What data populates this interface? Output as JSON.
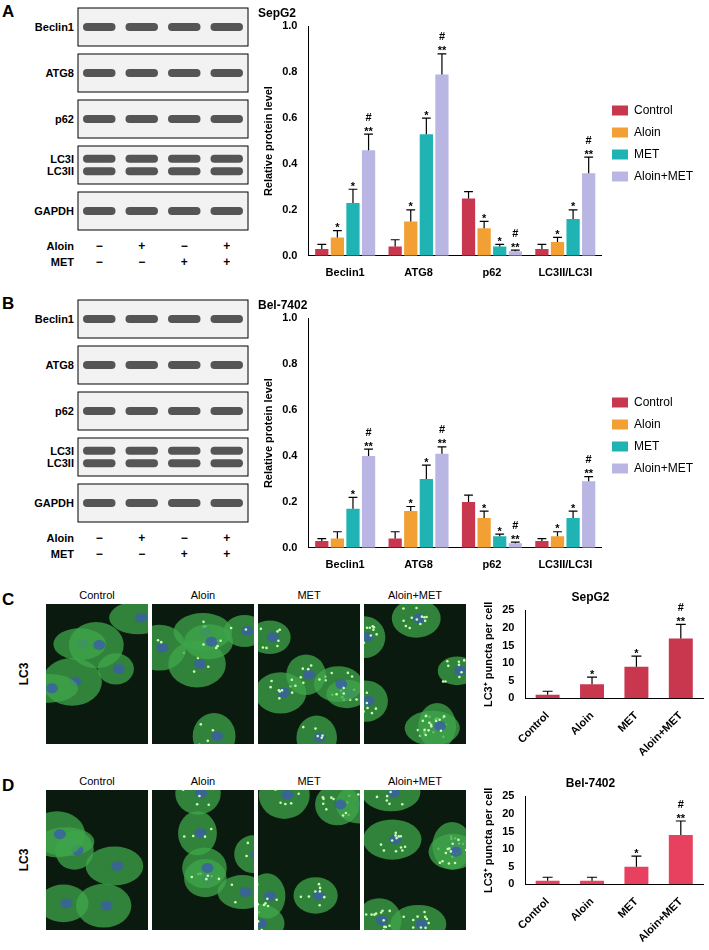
{
  "chart_data": [
    {
      "panel": "A",
      "type": "bar",
      "title": "SepG2",
      "y_label": "Relative protein level",
      "categories": [
        "Beclin1",
        "ATG8",
        "p62",
        "LC3II/LC3I"
      ],
      "series": [
        {
          "name": "Control",
          "color": "#c9374f",
          "values": [
            0.03,
            0.04,
            0.25,
            0.03
          ],
          "errors": [
            0.02,
            0.03,
            0.03,
            0.02
          ],
          "annotations": [
            null,
            null,
            null,
            null
          ]
        },
        {
          "name": "Aloin",
          "color": "#f2a034",
          "values": [
            0.08,
            0.15,
            0.12,
            0.06
          ],
          "errors": [
            0.03,
            0.05,
            0.03,
            0.02
          ],
          "annotations": [
            [
              "*"
            ],
            [
              "*"
            ],
            [
              "*"
            ],
            [
              "*"
            ]
          ]
        },
        {
          "name": "MET",
          "color": "#1fb3b3",
          "values": [
            0.23,
            0.53,
            0.04,
            0.16
          ],
          "errors": [
            0.06,
            0.07,
            0.01,
            0.04
          ],
          "annotations": [
            [
              "*"
            ],
            [
              "*"
            ],
            [
              "*"
            ],
            [
              "*"
            ]
          ]
        },
        {
          "name": "Aloin+MET",
          "color": "#b9b6e3",
          "values": [
            0.46,
            0.79,
            0.02,
            0.36
          ],
          "errors": [
            0.07,
            0.09,
            0.005,
            0.07
          ],
          "annotations": [
            [
              "#",
              "**"
            ],
            [
              "#",
              "**"
            ],
            [
              "#",
              "**"
            ],
            [
              "#",
              "**"
            ]
          ]
        }
      ],
      "ylim": [
        0,
        1
      ],
      "yticks": [
        {
          "value": 0,
          "label": "0.0"
        },
        {
          "value": 0.2,
          "label": "0.2"
        },
        {
          "value": 0.4,
          "label": "0.4"
        },
        {
          "value": 0.6,
          "label": "0.6"
        },
        {
          "value": 0.8,
          "label": "0.8"
        },
        {
          "value": 1,
          "label": "1.0"
        }
      ],
      "grid": false,
      "legend": "right"
    },
    {
      "panel": "B",
      "type": "bar",
      "title": "Bel-7402",
      "y_label": "Relative protein level",
      "categories": [
        "Beclin1",
        "ATG8",
        "p62",
        "LC3II/LC3I"
      ],
      "series": [
        {
          "name": "Control",
          "color": "#c9374f",
          "values": [
            0.03,
            0.04,
            0.2,
            0.03
          ],
          "errors": [
            0.01,
            0.03,
            0.03,
            0.01
          ],
          "annotations": [
            null,
            null,
            null,
            null
          ]
        },
        {
          "name": "Aloin",
          "color": "#f2a034",
          "values": [
            0.04,
            0.16,
            0.13,
            0.05
          ],
          "errors": [
            0.03,
            0.02,
            0.03,
            0.02
          ],
          "annotations": [
            null,
            [
              "*"
            ],
            [
              "*"
            ],
            [
              "*"
            ]
          ]
        },
        {
          "name": "MET",
          "color": "#1fb3b3",
          "values": [
            0.17,
            0.3,
            0.05,
            0.13
          ],
          "errors": [
            0.05,
            0.06,
            0.01,
            0.03
          ],
          "annotations": [
            [
              "*"
            ],
            [
              "*"
            ],
            [
              "*"
            ],
            [
              "*"
            ]
          ]
        },
        {
          "name": "Aloin+MET",
          "color": "#b9b6e3",
          "values": [
            0.4,
            0.41,
            0.02,
            0.29
          ],
          "errors": [
            0.03,
            0.03,
            0.005,
            0.02
          ],
          "annotations": [
            [
              "#",
              "**"
            ],
            [
              "#",
              "**"
            ],
            [
              "#",
              "**"
            ],
            [
              "#",
              "**"
            ]
          ]
        }
      ],
      "ylim": [
        0,
        1
      ],
      "yticks": [
        {
          "value": 0,
          "label": "0.0"
        },
        {
          "value": 0.2,
          "label": "0.2"
        },
        {
          "value": 0.4,
          "label": "0.4"
        },
        {
          "value": 0.6,
          "label": "0.6"
        },
        {
          "value": 0.8,
          "label": "0.8"
        },
        {
          "value": 1,
          "label": "1.0"
        }
      ],
      "grid": false,
      "legend": "right"
    },
    {
      "panel": "C",
      "type": "bar",
      "title": "SepG2",
      "y_label": "LC3⁺ puncta per cell",
      "categories": [
        "Control",
        "Aloin",
        "MET",
        "Aloin+MET"
      ],
      "values": [
        1,
        4,
        9,
        17
      ],
      "errors": [
        1,
        2,
        3,
        4
      ],
      "annotations": [
        null,
        [
          "*"
        ],
        [
          "*"
        ],
        [
          "#",
          "**"
        ]
      ],
      "color": "#c9374f",
      "ylim": [
        0,
        25
      ],
      "yticks": [
        0,
        5,
        10,
        15,
        20,
        25
      ],
      "grid": false
    },
    {
      "panel": "D",
      "type": "bar",
      "title": "Bel-7402",
      "y_label": "LC3⁺ puncta per cell",
      "categories": [
        "Control",
        "Aloin",
        "MET",
        "Aloin+MET"
      ],
      "values": [
        1,
        1,
        5,
        14
      ],
      "errors": [
        1,
        1,
        3,
        4
      ],
      "annotations": [
        null,
        null,
        [
          "*"
        ],
        [
          "#",
          "**"
        ]
      ],
      "color": "#e8415f",
      "ylim": [
        0,
        25
      ],
      "yticks": [
        0,
        5,
        10,
        15,
        20,
        25
      ],
      "grid": false
    }
  ],
  "blots": [
    {
      "panel": "A",
      "rows": [
        [
          "Beclin1"
        ],
        [
          "ATG8"
        ],
        [
          "p62"
        ],
        [
          "LC3I",
          "LC3II"
        ],
        [
          "GAPDH"
        ]
      ],
      "treatments": [
        {
          "name": "Aloin",
          "signs": [
            "−",
            "+",
            "−",
            "+"
          ]
        },
        {
          "name": "MET",
          "signs": [
            "−",
            "−",
            "+",
            "+"
          ]
        }
      ]
    },
    {
      "panel": "B",
      "rows": [
        [
          "Beclin1"
        ],
        [
          "ATG8"
        ],
        [
          "p62"
        ],
        [
          "LC3I",
          "LC3II"
        ],
        [
          "GAPDH"
        ]
      ],
      "treatments": [
        {
          "name": "Aloin",
          "signs": [
            "−",
            "+",
            "−",
            "+"
          ]
        },
        {
          "name": "MET",
          "signs": [
            "−",
            "−",
            "+",
            "+"
          ]
        }
      ]
    }
  ],
  "micrographs": [
    {
      "panel": "C",
      "stain": "LC3",
      "images": [
        "Control",
        "Aloin",
        "MET",
        "Aloin+MET"
      ]
    },
    {
      "panel": "D",
      "stain": "LC3",
      "images": [
        "Control",
        "Aloin",
        "MET",
        "Aloin+MET"
      ]
    }
  ]
}
